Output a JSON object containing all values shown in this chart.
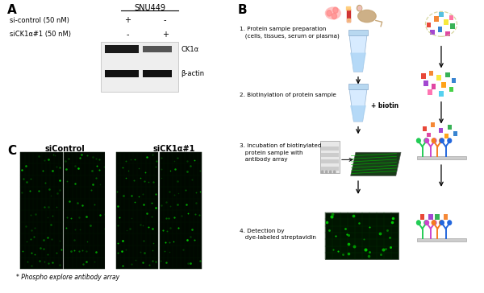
{
  "bg_color": "#ffffff",
  "panel_A": {
    "label": "A",
    "title": "SNU449",
    "row1_label": "si-control (50 nM)",
    "row2_label": "siCK1α#1 (50 nM)",
    "band1_label": "CK1α",
    "band2_label": "β-actin"
  },
  "panel_B": {
    "label": "B",
    "step1": "1. Protein sample preparation\n   (cells, tissues, serum or plasma)",
    "step2": "2. Biotinylation of protein sample",
    "step3": "3. Incubation of biotinylated\n   protein sample with\n   antibody array",
    "step4": "4. Detection by\n   dye-labeled streptavidin",
    "biotin_label": "+ biotin"
  },
  "panel_C": {
    "label": "C",
    "col1_label": "siControl",
    "col2_label": "siCK1α#1",
    "footnote": "* Phospho explore antibody array"
  }
}
